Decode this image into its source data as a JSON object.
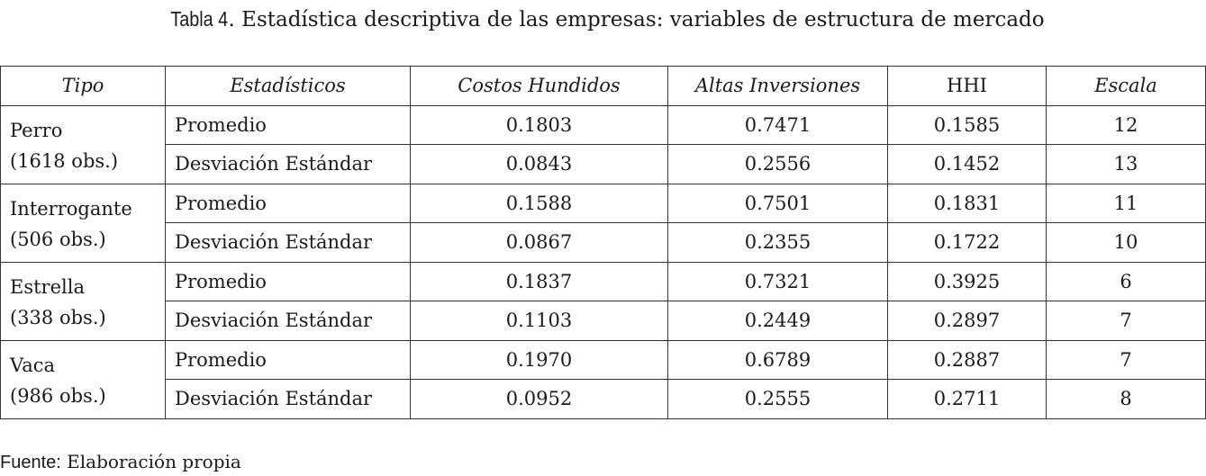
{
  "caption": {
    "label": "Tabla 4",
    "separator": ".",
    "text": " Estadística descriptiva de las empresas: variables de estructura de mercado"
  },
  "table": {
    "headers": [
      "Tipo",
      "Estadísticos",
      "Costos Hundidos",
      "Altas Inversiones",
      "HHI",
      "Escala"
    ],
    "groups": [
      {
        "name": "Perro",
        "obs": "(1618 obs.)",
        "rows": [
          {
            "stat": "Promedio",
            "costos": "0.1803",
            "altas": "0.7471",
            "hhi": "0.1585",
            "escala": "12"
          },
          {
            "stat": "Desviación Estándar",
            "costos": "0.0843",
            "altas": "0.2556",
            "hhi": "0.1452",
            "escala": "13"
          }
        ]
      },
      {
        "name": "Interrogante",
        "obs": "(506 obs.)",
        "rows": [
          {
            "stat": "Promedio",
            "costos": "0.1588",
            "altas": "0.7501",
            "hhi": "0.1831",
            "escala": "11"
          },
          {
            "stat": "Desviación Estándar",
            "costos": "0.0867",
            "altas": "0.2355",
            "hhi": "0.1722",
            "escala": "10"
          }
        ]
      },
      {
        "name": "Estrella",
        "obs": "(338 obs.)",
        "rows": [
          {
            "stat": "Promedio",
            "costos": "0.1837",
            "altas": "0.7321",
            "hhi": "0.3925",
            "escala": "6"
          },
          {
            "stat": "Desviación Estándar",
            "costos": "0.1103",
            "altas": "0.2449",
            "hhi": "0.2897",
            "escala": "7"
          }
        ]
      },
      {
        "name": "Vaca",
        "obs": "(986 obs.)",
        "rows": [
          {
            "stat": "Promedio",
            "costos": "0.1970",
            "altas": "0.6789",
            "hhi": "0.2887",
            "escala": "7"
          },
          {
            "stat": "Desviación Estándar",
            "costos": "0.0952",
            "altas": "0.2555",
            "hhi": "0.2711",
            "escala": "8"
          }
        ]
      }
    ]
  },
  "source": {
    "label": "Fuente:",
    "text": " Elaboración propia"
  }
}
